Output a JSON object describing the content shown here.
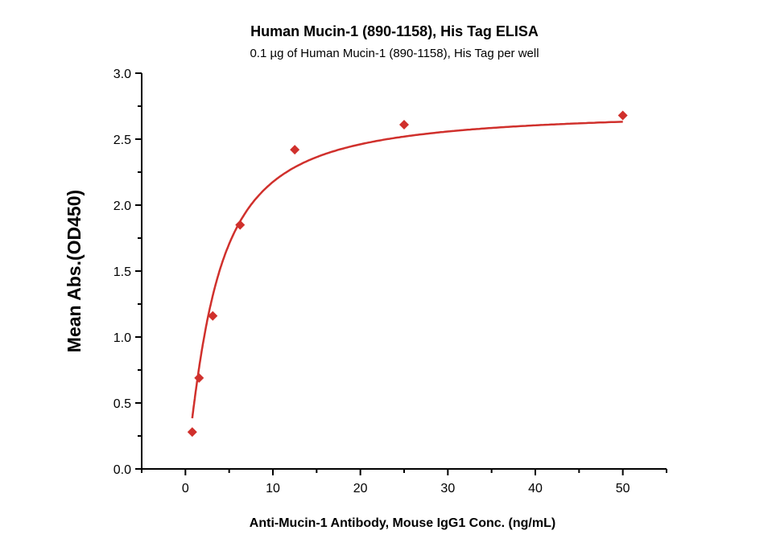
{
  "chart_data": {
    "type": "scatter",
    "title": "Human Mucin-1 (890-1158), His Tag ELISA",
    "subtitle": "0.1 µg of Human Mucin-1 (890-1158), His Tag per well",
    "xlabel": "Anti-Mucin-1 Antibody, Mouse IgG1 Conc. (ng/mL)",
    "ylabel": "Mean Abs.(OD450)",
    "xlim": [
      -5,
      55
    ],
    "ylim": [
      0,
      3.0
    ],
    "xticks": [
      "0",
      "10",
      "20",
      "30",
      "40",
      "50"
    ],
    "yticks": [
      "0.0",
      "0.5",
      "1.0",
      "1.5",
      "2.0",
      "2.5",
      "3.0"
    ],
    "grid": false,
    "color": "#d0302c",
    "marker": "diamond",
    "fit_curve": true,
    "series": [
      {
        "x": [
          0.78,
          1.56,
          3.125,
          6.25,
          12.5,
          25,
          50
        ],
        "y": [
          0.28,
          0.69,
          1.16,
          1.85,
          2.42,
          2.61,
          2.68
        ]
      }
    ]
  }
}
